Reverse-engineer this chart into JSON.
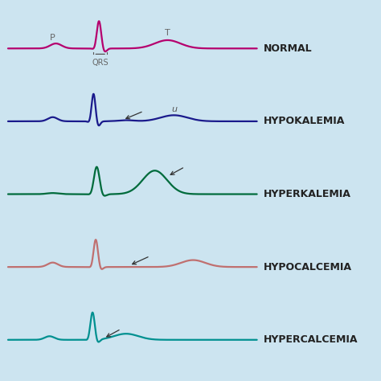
{
  "background_color": "#cce4f0",
  "labels": [
    "NORMAL",
    "HYPOKALEMIA",
    "HYPERKALEMIA",
    "HYPOCALCEMIA",
    "HYPERCALCEMIA"
  ],
  "colors": [
    "#b5006e",
    "#1a1a8c",
    "#006b3c",
    "#c07070",
    "#009090"
  ],
  "label_fontsize": 9,
  "label_color": "#222222"
}
